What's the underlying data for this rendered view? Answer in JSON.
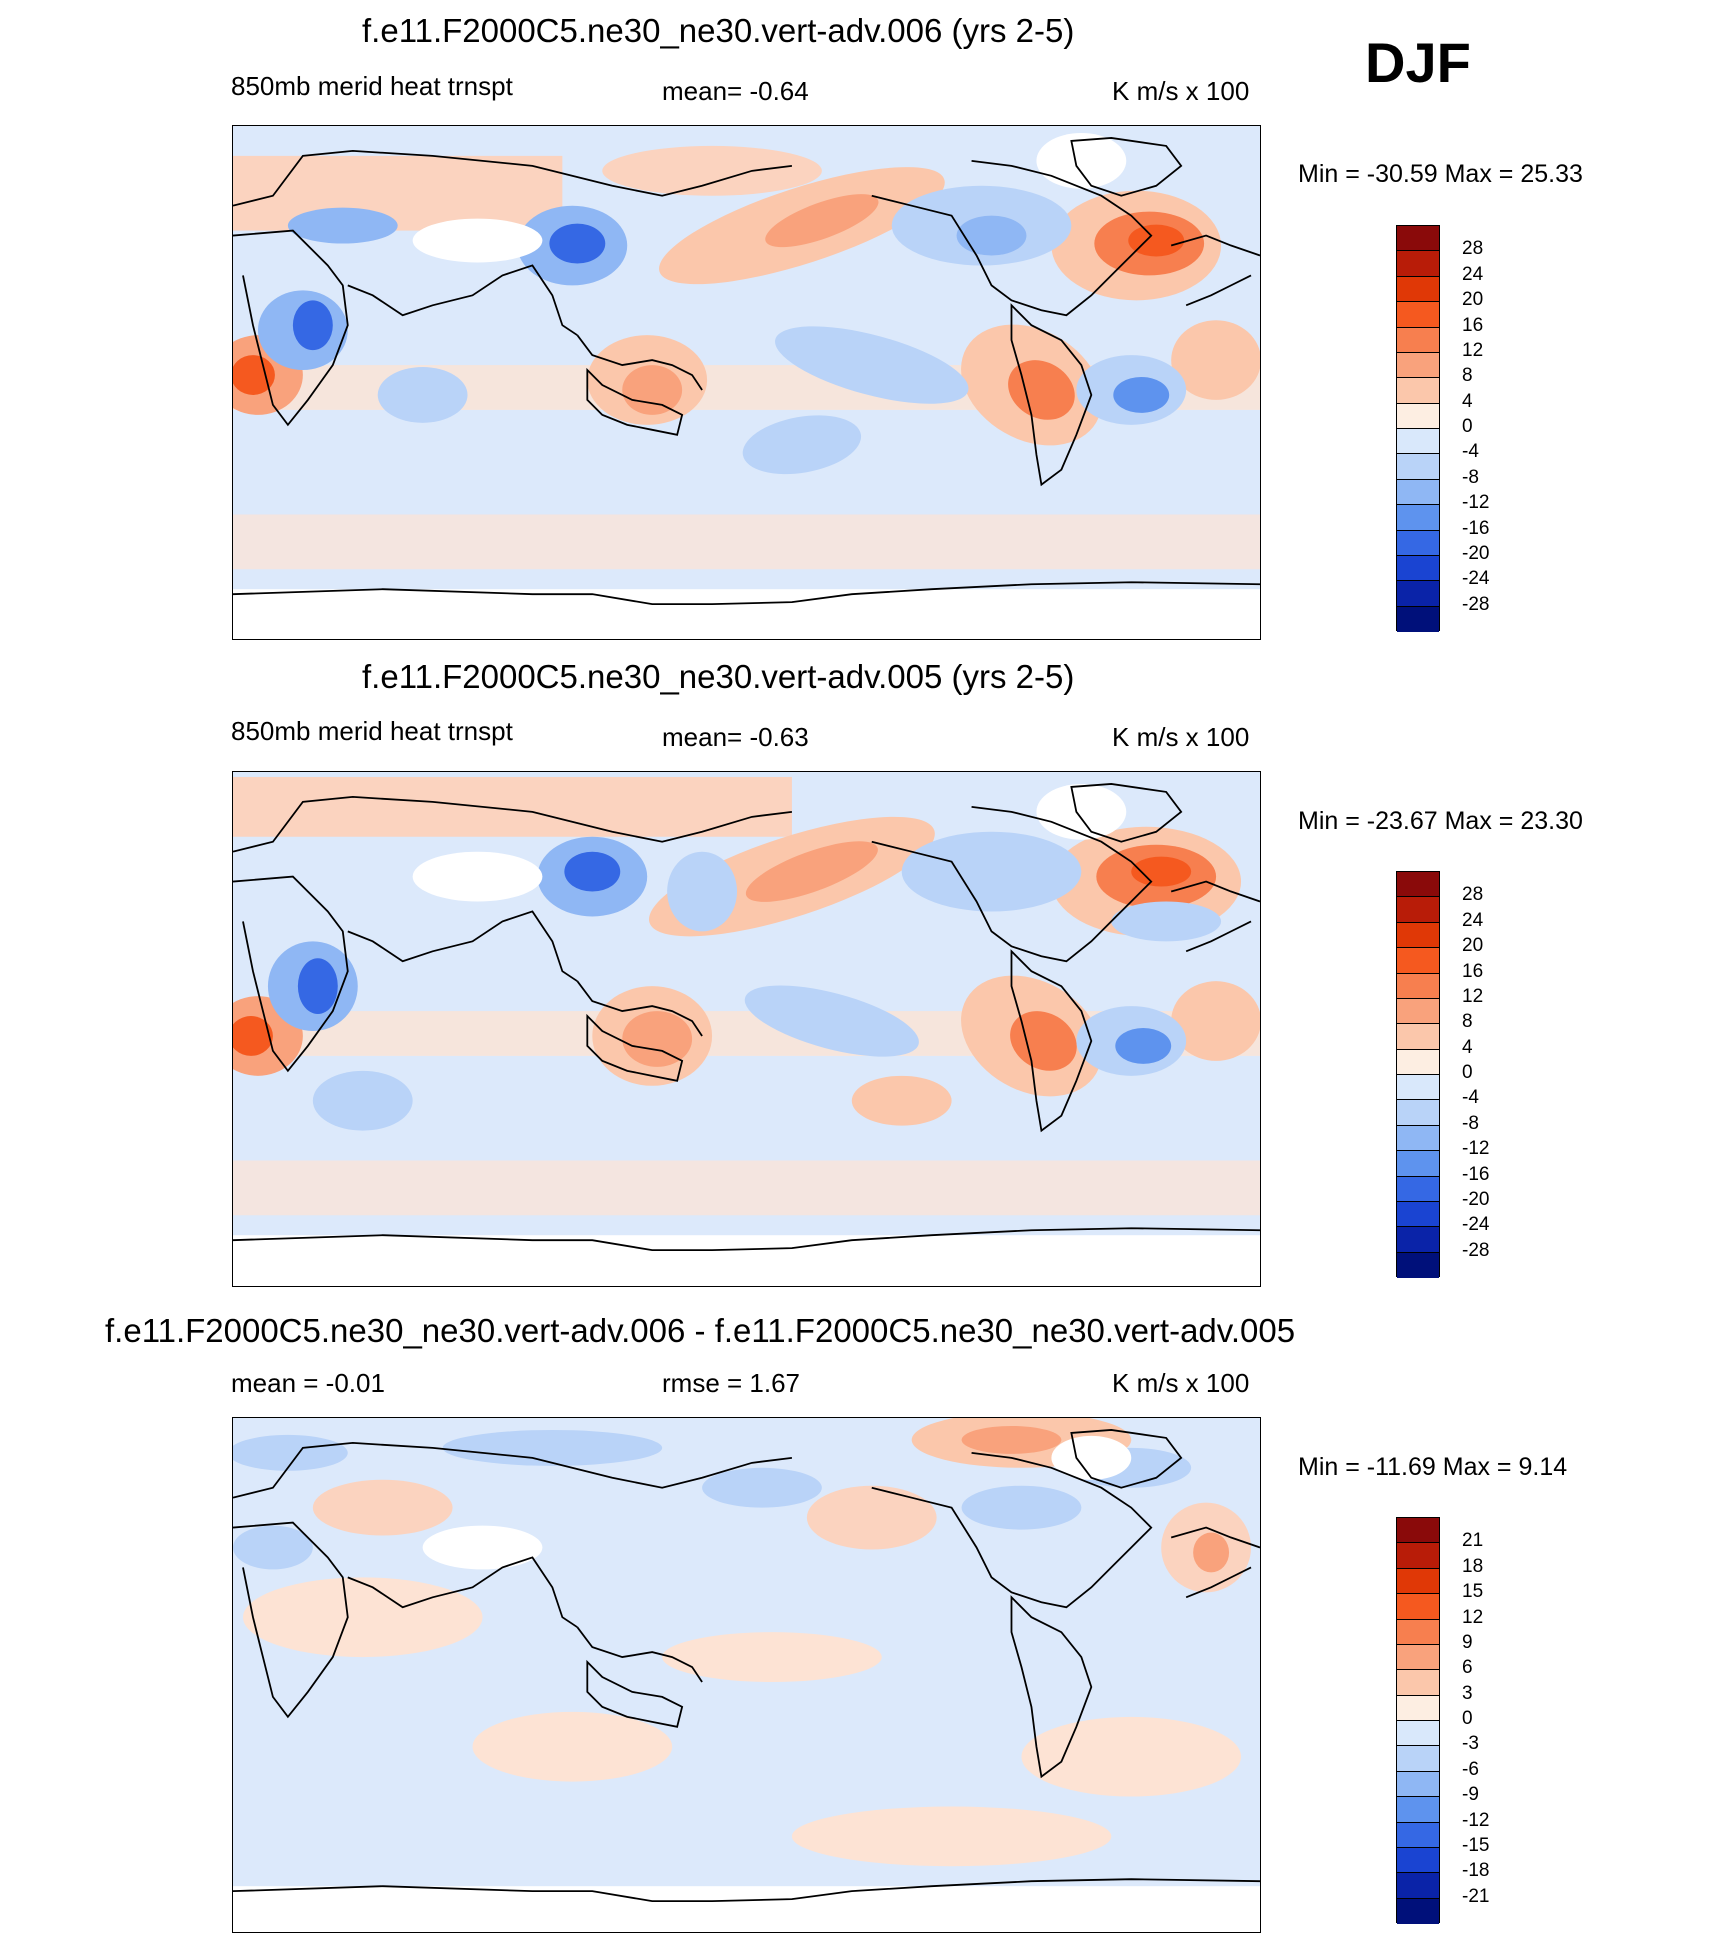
{
  "season": "DJF",
  "colors": {
    "ocean_bg": "#dce9fb",
    "land_bg": "#fbe3d6",
    "coast": "#000000"
  },
  "panels": [
    {
      "title": "f.e11.F2000C5.ne30_ne30.vert-adv.006 (yrs 2-5)",
      "left_label": "850mb merid heat trnspt",
      "center_label": "mean=  -0.64",
      "units": "K m/s x 100",
      "minmax": "Min = -30.59 Max =  25.33",
      "colorbar_labels": [
        "28",
        "24",
        "20",
        "16",
        "12",
        "8",
        "4",
        "0",
        "-4",
        "-8",
        "-12",
        "-16",
        "-20",
        "-24",
        "-28"
      ],
      "colorbar_colors": [
        "#8a0a0a",
        "#b81c08",
        "#e03806",
        "#f5591f",
        "#f77f4f",
        "#f9a27c",
        "#fbc7ab",
        "#fdeee2",
        "#d9e8fb",
        "#b9d3f8",
        "#8fb7f4",
        "#5e93ee",
        "#3568e4",
        "#1a44d2",
        "#0a23a8",
        "#00107a"
      ]
    },
    {
      "title": "f.e11.F2000C5.ne30_ne30.vert-adv.005 (yrs 2-5)",
      "left_label": "850mb merid heat trnspt",
      "center_label": "mean=  -0.63",
      "units": "K m/s x 100",
      "minmax": "Min = -23.67 Max =  23.30",
      "colorbar_labels": [
        "28",
        "24",
        "20",
        "16",
        "12",
        "8",
        "4",
        "0",
        "-4",
        "-8",
        "-12",
        "-16",
        "-20",
        "-24",
        "-28"
      ],
      "colorbar_colors": [
        "#8a0a0a",
        "#b81c08",
        "#e03806",
        "#f5591f",
        "#f77f4f",
        "#f9a27c",
        "#fbc7ab",
        "#fdeee2",
        "#d9e8fb",
        "#b9d3f8",
        "#8fb7f4",
        "#5e93ee",
        "#3568e4",
        "#1a44d2",
        "#0a23a8",
        "#00107a"
      ]
    },
    {
      "title": "f.e11.F2000C5.ne30_ne30.vert-adv.006 - f.e11.F2000C5.ne30_ne30.vert-adv.005",
      "left_label": "mean =  -0.01",
      "center_label": "rmse =   1.67",
      "units": "K m/s x 100",
      "minmax": "Min = -11.69 Max =   9.14",
      "colorbar_labels": [
        "21",
        "18",
        "15",
        "12",
        "9",
        "6",
        "3",
        "0",
        "-3",
        "-6",
        "-9",
        "-12",
        "-15",
        "-18",
        "-21"
      ],
      "colorbar_colors": [
        "#8a0a0a",
        "#b81c08",
        "#e03806",
        "#f5591f",
        "#f77f4f",
        "#f9a27c",
        "#fbc7ab",
        "#fdeee2",
        "#d9e8fb",
        "#b9d3f8",
        "#8fb7f4",
        "#5e93ee",
        "#3568e4",
        "#1a44d2",
        "#0a23a8",
        "#00107a"
      ]
    }
  ]
}
